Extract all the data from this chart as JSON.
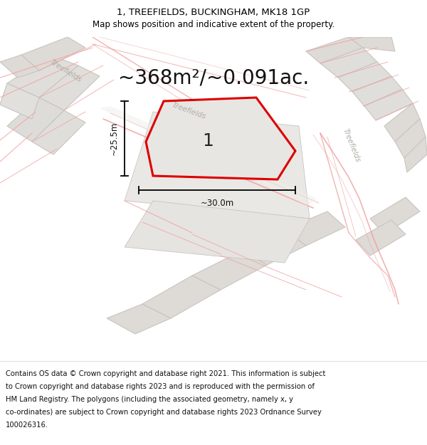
{
  "title": "1, TREEFIELDS, BUCKINGHAM, MK18 1GP",
  "subtitle": "Map shows position and indicative extent of the property.",
  "area_text": "~368m²/~0.091ac.",
  "dim_width": "~30.0m",
  "dim_height": "~25.5m",
  "plot_number": "1",
  "bg_white": "#ffffff",
  "map_bg_color": "#f5f4f2",
  "block_fill_color": "#e2e0dc",
  "block_edge_color": "#c8c5c0",
  "plot_fill_color": "#e8e6e2",
  "plot_outline_color": "#dd0000",
  "road_line_color": "#f0a0a0",
  "road_fill_color": "#ffffff",
  "grey_text_color": "#b0aca6",
  "footer_text": "Contains OS data © Crown copyright and database right 2021. This information is subject to Crown copyright and database rights 2023 and is reproduced with the permission of HM Land Registry. The polygons (including the associated geometry, namely x, y co-ordinates) are subject to Crown copyright and database rights 2023 Ordnance Survey 100026316.",
  "title_fontsize": 9.5,
  "subtitle_fontsize": 8.5,
  "area_fontsize": 20,
  "footer_fontsize": 7.2,
  "number_fontsize": 18,
  "dim_fontsize": 8.5
}
